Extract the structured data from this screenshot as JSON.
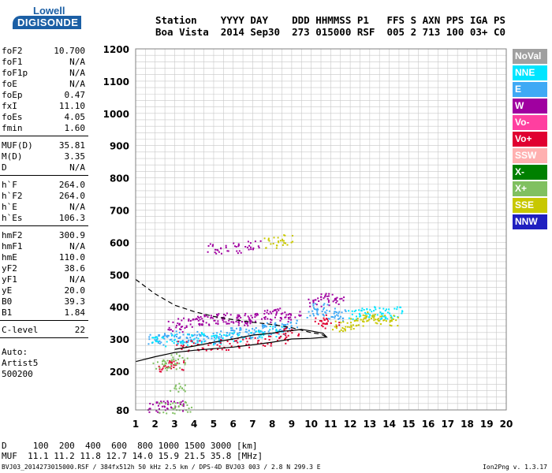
{
  "logo": {
    "line1": "Lowell",
    "line2": "DIGISONDE"
  },
  "header": {
    "line1": "Station    YYYY DAY    DDD HHMMSS P1   FFS S AXN PPS IGA PS",
    "line2": "Boa Vista  2014 Sep30  273 015000 RSF  005 2 713 100 03+ C0"
  },
  "params": {
    "group1": [
      {
        "name": "foF2",
        "value": "10.700"
      },
      {
        "name": "foF1",
        "value": "N/A"
      },
      {
        "name": "foF1p",
        "value": "N/A"
      },
      {
        "name": "foE",
        "value": "N/A"
      },
      {
        "name": "foEp",
        "value": "0.47"
      },
      {
        "name": "fxI",
        "value": "11.10"
      },
      {
        "name": "foEs",
        "value": "4.05"
      },
      {
        "name": "fmin",
        "value": "1.60"
      }
    ],
    "group2": [
      {
        "name": "MUF(D)",
        "value": "35.81"
      },
      {
        "name": "M(D)",
        "value": "3.35"
      },
      {
        "name": "D",
        "value": "N/A"
      }
    ],
    "group3": [
      {
        "name": "h`F",
        "value": "264.0"
      },
      {
        "name": "h`F2",
        "value": "264.0"
      },
      {
        "name": "h`E",
        "value": "N/A"
      },
      {
        "name": "h`Es",
        "value": "106.3"
      }
    ],
    "group4": [
      {
        "name": "hmF2",
        "value": "300.9"
      },
      {
        "name": "hmF1",
        "value": "N/A"
      },
      {
        "name": "hmE",
        "value": "110.0"
      },
      {
        "name": "yF2",
        "value": "38.6"
      },
      {
        "name": "yF1",
        "value": "N/A"
      },
      {
        "name": "yE",
        "value": "20.0"
      },
      {
        "name": "B0",
        "value": "39.3"
      },
      {
        "name": "B1",
        "value": "1.84"
      }
    ],
    "group5": [
      {
        "name": "C-level",
        "value": "22"
      }
    ],
    "auto_label": "Auto:",
    "artist": "Artist5",
    "artist_version": "500200"
  },
  "legend": [
    {
      "label": "NoVal",
      "color": "#a0a0a0"
    },
    {
      "label": "NNE",
      "color": "#00e5ff"
    },
    {
      "label": "E",
      "color": "#3fa9f5"
    },
    {
      "label": "W",
      "color": "#a000a0"
    },
    {
      "label": "Vo-",
      "color": "#ff3fa0"
    },
    {
      "label": "Vo+",
      "color": "#e00030"
    },
    {
      "label": "SSW",
      "color": "#ffb0b0"
    },
    {
      "label": "X-",
      "color": "#008000"
    },
    {
      "label": "X+",
      "color": "#80c060"
    },
    {
      "label": "SSE",
      "color": "#c8c800"
    },
    {
      "label": "NNW",
      "color": "#2020c0"
    }
  ],
  "bottom": {
    "row1": "D     100  200  400  600  800 1000 1500 3000 [km]",
    "row2": "MUF  11.1 11.2 11.8 12.7 14.0 15.9 21.5 35.8 [MHz]"
  },
  "footer": "BVJ03_2014273015000.RSF / 384fx512h 50 kHz 2.5 km / DPS-4D BVJ03 003 / 2.8 N 299.3 E",
  "version": "Ion2Png v. 1.3.17",
  "chart_data": {
    "type": "scatter",
    "xlim": [
      1,
      20
    ],
    "ylim": [
      80,
      1200
    ],
    "xticks": [
      "1",
      "2",
      "3",
      "4",
      "5",
      "6",
      "7",
      "8",
      "9",
      "10",
      "11",
      "12",
      "13",
      "14",
      "15",
      "16",
      "17",
      "18",
      "19",
      "20"
    ],
    "yticks": [
      "80",
      "200",
      "300",
      "400",
      "500",
      "600",
      "700",
      "800",
      "900",
      "1000",
      "1100",
      "1200"
    ],
    "grid": true,
    "clusters": [
      {
        "name": "E",
        "color": "#3fa9f5",
        "points": [
          [
            2.0,
            300
          ],
          [
            2.5,
            305
          ],
          [
            3.0,
            310
          ],
          [
            3.5,
            305
          ],
          [
            4.0,
            300
          ],
          [
            4.5,
            310
          ],
          [
            5.0,
            305
          ],
          [
            5.5,
            310
          ],
          [
            6.0,
            320
          ],
          [
            6.5,
            325
          ],
          [
            7.0,
            320
          ],
          [
            7.5,
            330
          ],
          [
            8.0,
            335
          ],
          [
            8.5,
            340
          ],
          [
            9.0,
            345
          ],
          [
            10.2,
            385
          ],
          [
            10.5,
            395
          ],
          [
            11.0,
            380
          ],
          [
            11.3,
            375
          ]
        ]
      },
      {
        "name": "NNE",
        "color": "#00e5ff",
        "points": [
          [
            2.2,
            295
          ],
          [
            3.2,
            300
          ],
          [
            4.2,
            305
          ],
          [
            5.2,
            300
          ],
          [
            6.2,
            310
          ],
          [
            7.2,
            315
          ],
          [
            8.2,
            325
          ],
          [
            12.3,
            380
          ],
          [
            12.8,
            385
          ],
          [
            13.3,
            385
          ],
          [
            13.8,
            380
          ],
          [
            14.2,
            385
          ]
        ]
      },
      {
        "name": "W",
        "color": "#a000a0",
        "points": [
          [
            3.0,
            340
          ],
          [
            3.5,
            350
          ],
          [
            4.0,
            355
          ],
          [
            4.5,
            360
          ],
          [
            5.0,
            360
          ],
          [
            5.5,
            365
          ],
          [
            6.0,
            360
          ],
          [
            6.5,
            360
          ],
          [
            7.0,
            365
          ],
          [
            7.5,
            370
          ],
          [
            8.0,
            380
          ],
          [
            8.5,
            375
          ],
          [
            9.0,
            370
          ],
          [
            10.2,
            420
          ],
          [
            10.8,
            430
          ],
          [
            11.2,
            420
          ],
          [
            2.0,
            90
          ],
          [
            2.5,
            92
          ],
          [
            3.0,
            95
          ],
          [
            5.0,
            580
          ],
          [
            6.0,
            585
          ],
          [
            7.0,
            590
          ]
        ]
      },
      {
        "name": "Vo+",
        "color": "#e00030",
        "points": [
          [
            3.5,
            280
          ],
          [
            4.5,
            282
          ],
          [
            5.5,
            285
          ],
          [
            6.5,
            290
          ],
          [
            7.5,
            295
          ],
          [
            8.5,
            305
          ],
          [
            9.0,
            320
          ],
          [
            10.5,
            360
          ],
          [
            11.0,
            350
          ],
          [
            2.6,
            215
          ],
          [
            3.0,
            218
          ]
        ]
      },
      {
        "name": "X+",
        "color": "#80c060",
        "points": [
          [
            2.3,
            220
          ],
          [
            2.8,
            225
          ],
          [
            3.1,
            150
          ],
          [
            3.2,
            240
          ],
          [
            2.6,
            88
          ],
          [
            3.5,
            92
          ]
        ]
      },
      {
        "name": "SSE",
        "color": "#c8c800",
        "points": [
          [
            11.5,
            340
          ],
          [
            12.0,
            350
          ],
          [
            12.5,
            360
          ],
          [
            13.0,
            370
          ],
          [
            13.5,
            365
          ],
          [
            14.0,
            360
          ],
          [
            8.0,
            600
          ],
          [
            8.6,
            610
          ]
        ]
      }
    ],
    "lines": [
      {
        "name": "solid",
        "points": [
          [
            1.0,
            230
          ],
          [
            2.0,
            245
          ],
          [
            3.0,
            258
          ],
          [
            4.0,
            265
          ],
          [
            5.0,
            270
          ],
          [
            6.0,
            275
          ],
          [
            7.0,
            282
          ],
          [
            8.0,
            290
          ],
          [
            9.0,
            300
          ],
          [
            10.0,
            302
          ],
          [
            10.8,
            306
          ],
          [
            10.6,
            318
          ],
          [
            10.0,
            325
          ],
          [
            9.5,
            330
          ],
          [
            9.0,
            326
          ],
          [
            8.5,
            324
          ],
          [
            8.0,
            318
          ],
          [
            7.5,
            315
          ],
          [
            7.0,
            312
          ],
          [
            6.0,
            300
          ],
          [
            5.0,
            290
          ],
          [
            4.0,
            278
          ],
          [
            3.0,
            268
          ]
        ]
      },
      {
        "name": "dashed",
        "points": [
          [
            1.0,
            485
          ],
          [
            2.0,
            440
          ],
          [
            3.0,
            405
          ],
          [
            4.0,
            385
          ],
          [
            5.0,
            370
          ],
          [
            6.0,
            360
          ],
          [
            7.0,
            352
          ],
          [
            8.0,
            345
          ],
          [
            9.0,
            335
          ],
          [
            10.0,
            320
          ],
          [
            10.5,
            315
          ],
          [
            10.8,
            306
          ]
        ]
      }
    ]
  }
}
